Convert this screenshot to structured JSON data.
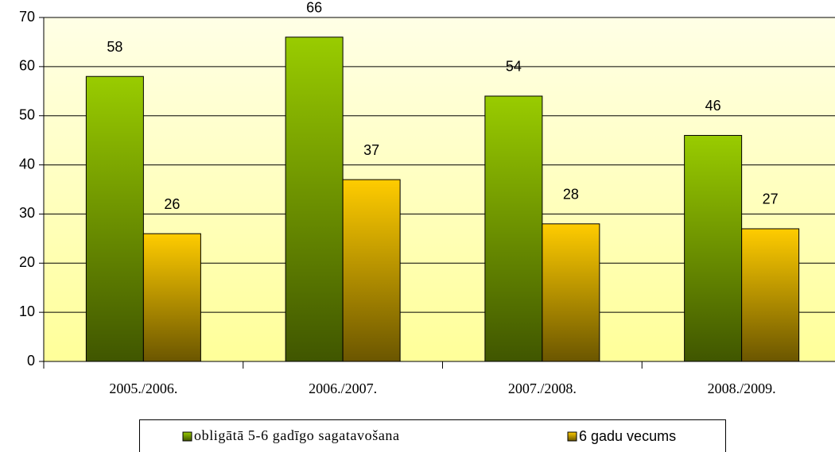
{
  "chart_data": {
    "type": "bar",
    "categories": [
      "2005./2006.",
      "2006./2007.",
      "2007./2008.",
      "2008./2009."
    ],
    "series": [
      {
        "name": "obligātā 5-6 gadīgo sagatavošana",
        "color": "#99cc00",
        "values": [
          58,
          66,
          54,
          46
        ]
      },
      {
        "name": "6 gadu vecums",
        "color": "#ffcc00",
        "values": [
          26,
          37,
          28,
          27
        ]
      }
    ],
    "ylim": [
      0,
      70
    ],
    "yticks": [
      0,
      10,
      20,
      30,
      40,
      50,
      60,
      70
    ],
    "grid": true,
    "legend": "bottom"
  }
}
